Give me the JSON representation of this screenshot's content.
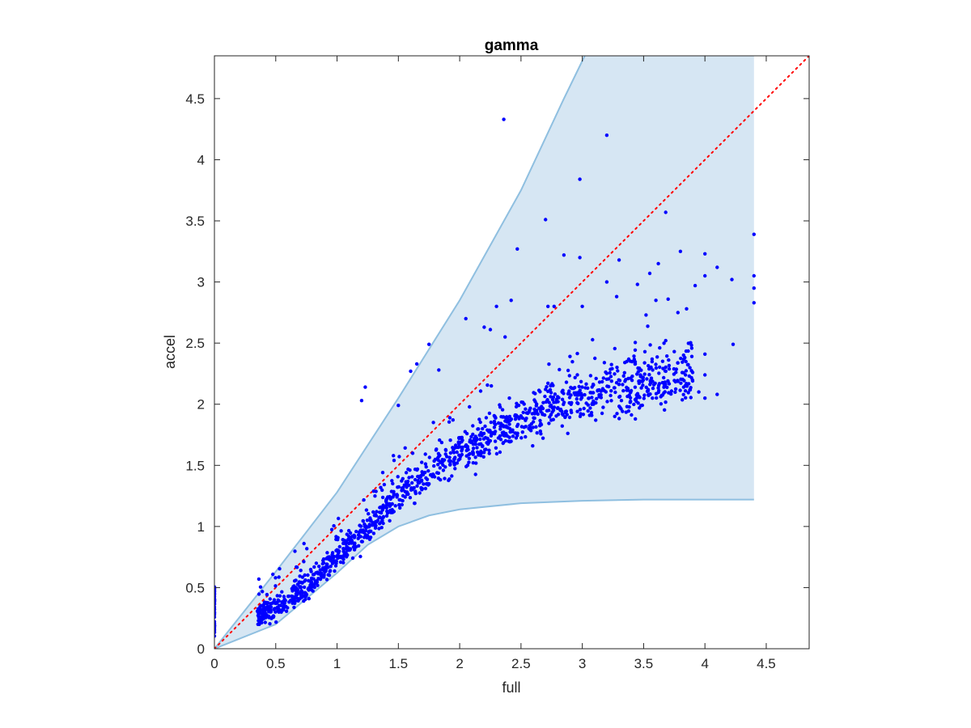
{
  "chart_data": {
    "type": "scatter",
    "title": "gamma",
    "xlabel": "full",
    "ylabel": "accel",
    "xlim": [
      0,
      4.85
    ],
    "ylim": [
      0,
      4.85
    ],
    "xticks": [
      "0",
      "0.5",
      "1",
      "1.5",
      "2",
      "2.5",
      "3",
      "3.5",
      "4",
      "4.5"
    ],
    "yticks": [
      "0",
      "0.5",
      "1",
      "1.5",
      "2",
      "2.5",
      "3",
      "3.5",
      "4",
      "4.5"
    ],
    "grid": false,
    "colors": {
      "points": "#0000ff",
      "reference_line": "#ff0000",
      "band_fill": "#d6e6f3",
      "band_edge": "#8fbfe0",
      "axes": "#262626"
    },
    "reference_line": {
      "style": "dotted",
      "from": [
        0,
        0
      ],
      "to": [
        4.85,
        4.85
      ]
    },
    "band": {
      "x_max": 4.4,
      "upper": [
        [
          0,
          0
        ],
        [
          0.5,
          0.63
        ],
        [
          1,
          1.28
        ],
        [
          1.5,
          2.05
        ],
        [
          2,
          2.85
        ],
        [
          2.5,
          3.75
        ],
        [
          2.85,
          4.5
        ],
        [
          3.02,
          4.85
        ]
      ],
      "lower": [
        [
          0,
          0
        ],
        [
          0.5,
          0.2
        ],
        [
          1,
          0.62
        ],
        [
          1.25,
          0.85
        ],
        [
          1.5,
          1.0
        ],
        [
          1.75,
          1.09
        ],
        [
          2,
          1.14
        ],
        [
          2.5,
          1.19
        ],
        [
          3,
          1.21
        ],
        [
          3.5,
          1.22
        ],
        [
          4.4,
          1.22
        ]
      ]
    },
    "outliers": [
      [
        2.36,
        4.33
      ],
      [
        3.2,
        4.2
      ],
      [
        2.98,
        3.84
      ],
      [
        2.7,
        3.51
      ],
      [
        3.68,
        3.57
      ],
      [
        2.47,
        3.27
      ],
      [
        2.85,
        3.22
      ],
      [
        2.98,
        3.2
      ],
      [
        3.8,
        3.25
      ],
      [
        4.0,
        3.23
      ],
      [
        4.4,
        3.39
      ],
      [
        4.1,
        3.12
      ],
      [
        4.4,
        3.05
      ],
      [
        4.4,
        2.95
      ],
      [
        4.4,
        2.83
      ],
      [
        4.22,
        3.02
      ],
      [
        4.0,
        3.05
      ],
      [
        3.55,
        3.07
      ],
      [
        3.3,
        3.18
      ],
      [
        3.62,
        3.15
      ],
      [
        3.45,
        2.98
      ],
      [
        3.92,
        2.97
      ],
      [
        3.7,
        2.86
      ],
      [
        3.2,
        3.0
      ],
      [
        3.28,
        2.88
      ],
      [
        3.6,
        2.85
      ],
      [
        2.42,
        2.85
      ],
      [
        2.3,
        2.8
      ],
      [
        2.72,
        2.8
      ],
      [
        2.77,
        2.8
      ],
      [
        3.0,
        2.8
      ],
      [
        3.85,
        2.78
      ],
      [
        3.78,
        2.75
      ],
      [
        3.52,
        2.73
      ],
      [
        2.05,
        2.7
      ],
      [
        2.2,
        2.63
      ],
      [
        2.25,
        2.61
      ],
      [
        2.37,
        2.55
      ],
      [
        4.23,
        2.49
      ],
      [
        1.75,
        2.49
      ],
      [
        1.5,
        1.99
      ],
      [
        1.65,
        2.33
      ],
      [
        1.6,
        2.27
      ],
      [
        1.23,
        2.14
      ],
      [
        1.2,
        2.03
      ],
      [
        1.83,
        2.28
      ],
      [
        3.68,
        2.52
      ],
      [
        3.75,
        2.43
      ],
      [
        4.0,
        2.41
      ],
      [
        4.0,
        2.24
      ],
      [
        3.95,
        2.1
      ],
      [
        4.1,
        2.08
      ],
      [
        4.0,
        2.05
      ],
      [
        3.85,
        2.15
      ],
      [
        3.9,
        2.26
      ]
    ],
    "cluster_at_zero": {
      "x": 0,
      "y_range": [
        0.1,
        0.52
      ],
      "count": 45
    },
    "main_cloud": {
      "x_range": [
        0.35,
        3.9
      ],
      "count": 1350,
      "center_curve": [
        [
          0.35,
          0.27
        ],
        [
          0.5,
          0.33
        ],
        [
          0.75,
          0.5
        ],
        [
          1.0,
          0.75
        ],
        [
          1.25,
          1.0
        ],
        [
          1.5,
          1.25
        ],
        [
          1.75,
          1.45
        ],
        [
          2.0,
          1.6
        ],
        [
          2.25,
          1.74
        ],
        [
          2.5,
          1.86
        ],
        [
          2.75,
          1.98
        ],
        [
          3.0,
          2.07
        ],
        [
          3.25,
          2.12
        ],
        [
          3.5,
          2.17
        ],
        [
          3.75,
          2.2
        ],
        [
          3.9,
          2.22
        ]
      ]
    }
  }
}
